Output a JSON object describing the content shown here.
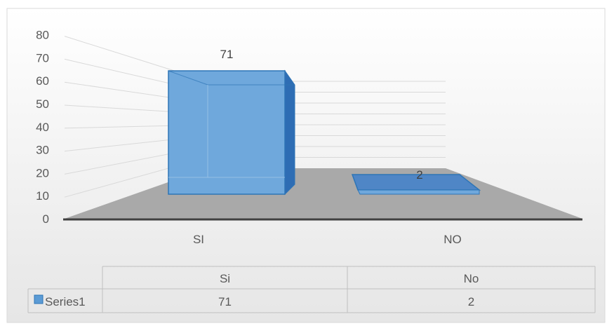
{
  "chart_data": {
    "type": "bar",
    "categories": [
      "SI",
      "NO"
    ],
    "table_categories": [
      "Si",
      "No"
    ],
    "series": [
      {
        "name": "Series1",
        "values": [
          71,
          2
        ],
        "color": "#5b9bd5"
      }
    ],
    "data_labels": [
      "71",
      "2"
    ],
    "ylim": [
      0,
      80
    ],
    "yticks": [
      0,
      10,
      20,
      30,
      40,
      50,
      60,
      70,
      80
    ],
    "gridlines": true,
    "style": "3d-column",
    "data_table": true,
    "background": "#ececec",
    "floor_color": "#a9a9a9",
    "axis_line_color": "#404040"
  }
}
